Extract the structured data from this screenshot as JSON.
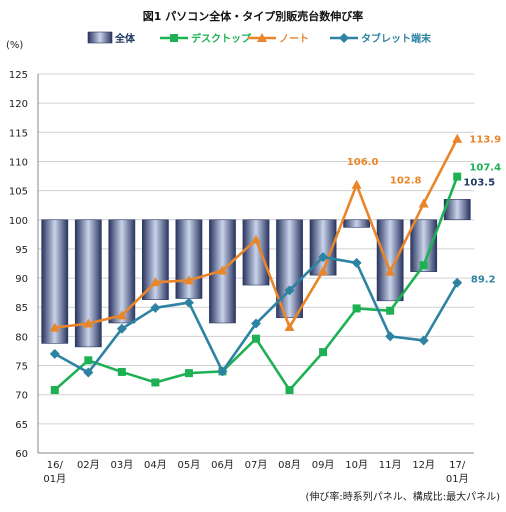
{
  "chart_data": {
    "type": "bar+line",
    "title": "図1 パソコン全体・タイプ別販売台数伸び率",
    "ylabel": "(%)",
    "ylim": [
      60,
      125
    ],
    "yticks": [
      60,
      65,
      70,
      75,
      80,
      85,
      90,
      95,
      100,
      105,
      110,
      115,
      120,
      125
    ],
    "baseline": 100,
    "categories": [
      "16/\n01月",
      "02月",
      "03月",
      "04月",
      "05月",
      "06月",
      "07月",
      "08月",
      "09月",
      "10月",
      "11月",
      "12月",
      "17/\n01月"
    ],
    "bar_series": {
      "name": "全体",
      "values": [
        78.8,
        78.2,
        82.3,
        86.3,
        86.5,
        82.3,
        88.8,
        83.2,
        90.5,
        98.7,
        86.1,
        91.1,
        103.5
      ],
      "color": "#3a4a72"
    },
    "series": [
      {
        "name": "デスクトップ",
        "color": "#1db154",
        "marker": "square",
        "values": [
          70.8,
          75.9,
          73.9,
          72.1,
          73.7,
          74.0,
          79.6,
          70.8,
          77.3,
          84.8,
          84.4,
          92.2,
          107.4
        ]
      },
      {
        "name": "ノート",
        "color": "#e9862a",
        "marker": "triangle",
        "values": [
          81.5,
          82.2,
          83.6,
          89.3,
          89.6,
          91.3,
          96.6,
          81.6,
          91.2,
          106.0,
          91.1,
          102.8,
          113.9
        ]
      },
      {
        "name": "タブレット端末",
        "color": "#2e83a2",
        "marker": "diamond",
        "values": [
          77.0,
          73.8,
          81.3,
          84.9,
          85.8,
          74.0,
          82.2,
          87.9,
          93.6,
          92.6,
          80.0,
          79.3,
          89.2
        ]
      }
    ],
    "data_labels": [
      {
        "text": "113.9",
        "series": "ノート",
        "index": 12,
        "color": "#e9862a"
      },
      {
        "text": "107.4",
        "series": "デスクトップ",
        "index": 12,
        "color": "#1db154"
      },
      {
        "text": "103.5",
        "series": "全体",
        "index": 12,
        "color": "#1f3864"
      },
      {
        "text": "106.0",
        "series": "ノート",
        "index": 9,
        "color": "#e9862a"
      },
      {
        "text": "102.8",
        "series": "ノート",
        "index": 11,
        "color": "#e9862a"
      },
      {
        "text": "89.2",
        "series": "タブレット端末",
        "index": 12,
        "color": "#2e83a2"
      }
    ],
    "footnote": "(伸び率:時系列パネル、構成比:最大パネル)",
    "grid": true,
    "legend_position": "top"
  }
}
